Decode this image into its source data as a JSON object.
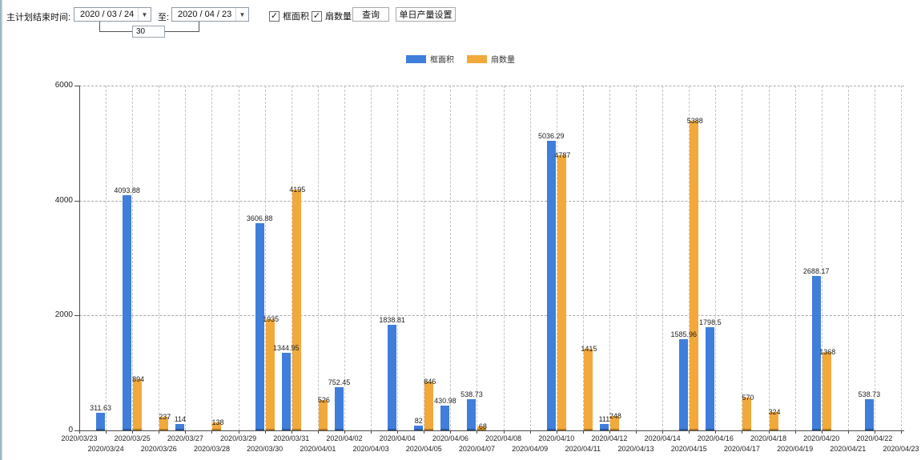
{
  "toolbar": {
    "main_label": "主计划结束时间:",
    "date_from": "2020 / 03 / 24",
    "to_label": "至:",
    "date_to": "2020 / 04 / 23",
    "interval_value": "30",
    "checkbox_area_label": "框面积",
    "checkbox_fan_label": "扇数量",
    "query_button_label": "查询",
    "daily_output_button_label": "单日产量设置"
  },
  "icons": {
    "dropdown_arrow": "▼",
    "checkbox_check": "✓"
  },
  "chart_data": {
    "type": "bar",
    "title": "",
    "xlabel": "",
    "ylabel": "",
    "ylim": [
      0,
      6000
    ],
    "yticks": [
      0,
      2000,
      4000,
      6000
    ],
    "grid": true,
    "legend_position": "top",
    "categories": [
      "2020/03/23",
      "2020/03/24",
      "2020/03/25",
      "2020/03/26",
      "2020/03/27",
      "2020/03/28",
      "2020/03/29",
      "2020/03/30",
      "2020/03/31",
      "2020/04/01",
      "2020/04/02",
      "2020/04/03",
      "2020/04/04",
      "2020/04/05",
      "2020/04/06",
      "2020/04/07",
      "2020/04/08",
      "2020/04/09",
      "2020/04/10",
      "2020/04/11",
      "2020/04/12",
      "2020/04/13",
      "2020/04/14",
      "2020/04/15",
      "2020/04/16",
      "2020/04/17",
      "2020/04/18",
      "2020/04/19",
      "2020/04/20",
      "2020/04/21",
      "2020/04/22",
      "2020/04/23"
    ],
    "series": [
      {
        "name": "框面积",
        "color": "#3f7edb",
        "base_color": "#2a5a9e",
        "values": [
          null,
          311.63,
          4093.88,
          null,
          114,
          null,
          null,
          3606.88,
          1344.95,
          null,
          752.45,
          null,
          1838.81,
          82,
          430.98,
          538.73,
          null,
          null,
          5036.29,
          null,
          111,
          null,
          null,
          1585.96,
          1798.5,
          null,
          null,
          null,
          2688.17,
          null,
          538.73,
          null
        ]
      },
      {
        "name": "扇数量",
        "color": "#f2a93c",
        "base_color": "#b07a1e",
        "values": [
          null,
          null,
          894,
          237,
          null,
          138,
          null,
          1935,
          4195,
          526,
          null,
          null,
          null,
          846,
          null,
          68,
          null,
          null,
          4787,
          1415,
          248,
          null,
          null,
          5388,
          null,
          570,
          324,
          null,
          1368,
          null,
          null,
          null
        ]
      }
    ],
    "colors": {
      "axis": "#4a4a4a",
      "grid_h": "#a9a9a9",
      "grid_v": "#c3c3c3",
      "label_text": "#222222"
    }
  }
}
